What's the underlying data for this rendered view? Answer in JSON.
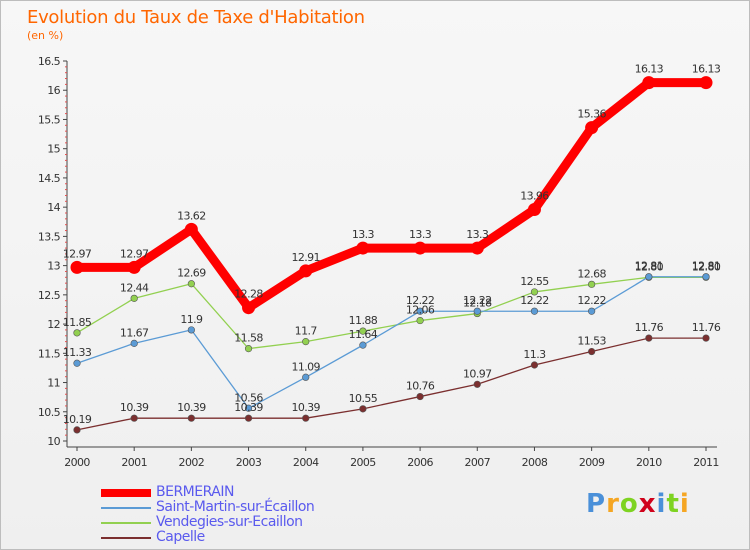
{
  "header": {
    "title": "Evolution du Taux de Taxe d'Habitation",
    "subtitle": "(en %)"
  },
  "brand": {
    "text": "Proxiti",
    "letters": [
      {
        "ch": "P",
        "color": "#4a90d9"
      },
      {
        "ch": "r",
        "color": "#f5a623"
      },
      {
        "ch": "o",
        "color": "#7ed321"
      },
      {
        "ch": "x",
        "color": "#d0021b"
      },
      {
        "ch": "i",
        "color": "#4a90d9"
      },
      {
        "ch": "t",
        "color": "#7ed321"
      },
      {
        "ch": "i",
        "color": "#f5a623"
      }
    ]
  },
  "chart_data": {
    "type": "line",
    "title": "Evolution du Taux de Taxe d'Habitation",
    "subtitle": "(en %)",
    "xlabel": "",
    "ylabel": "",
    "ylim": [
      10,
      16.5
    ],
    "yticks": [
      10,
      10.5,
      11,
      11.5,
      12,
      12.5,
      13,
      13.5,
      14,
      14.5,
      15,
      15.5,
      16,
      16.5
    ],
    "categories": [
      "2000",
      "2001",
      "2002",
      "2003",
      "2004",
      "2005",
      "2006",
      "2007",
      "2008",
      "2009",
      "2010",
      "2011"
    ],
    "grid": false,
    "legend_position": "bottom-left",
    "series": [
      {
        "name": "BERMERAIN",
        "color": "#ff0000",
        "values": [
          12.97,
          12.97,
          13.62,
          12.28,
          12.91,
          13.3,
          13.3,
          13.3,
          13.96,
          15.36,
          16.13,
          16.13
        ],
        "labels": [
          "12.97",
          "12.97",
          "13.62",
          "12.28",
          "12.91",
          "13.3",
          "13.3",
          "13.3",
          "13.96",
          "15.36",
          "16.13",
          "16.13"
        ]
      },
      {
        "name": "Saint-Martin-sur-Écaillon",
        "color": "#5b9bd5",
        "values": [
          11.33,
          11.67,
          11.9,
          10.56,
          11.09,
          11.64,
          12.22,
          12.22,
          12.22,
          12.22,
          12.81,
          12.81
        ],
        "labels": [
          "11.33",
          "11.67",
          "11.9",
          "10.56",
          "11.09",
          "11.64",
          "12.22",
          "12.22",
          "12.22",
          "12.22",
          "12.81",
          "12.81"
        ]
      },
      {
        "name": "Vendegies-sur-Ecaillon",
        "color": "#92d050",
        "values": [
          11.85,
          12.44,
          12.69,
          11.58,
          11.7,
          11.88,
          12.06,
          12.18,
          12.55,
          12.68,
          12.8,
          12.8
        ],
        "labels": [
          "11.85",
          "12.44",
          "12.69",
          "11.58",
          "11.7",
          "11.88",
          "12.06",
          "12.18",
          "12.55",
          "12.68",
          "12.80",
          "12.80"
        ]
      },
      {
        "name": "Capelle",
        "color": "#7b2f2f",
        "values": [
          10.19,
          10.39,
          10.39,
          10.39,
          10.39,
          10.55,
          10.76,
          10.97,
          11.3,
          11.53,
          11.76,
          11.76
        ],
        "labels": [
          "10.19",
          "10.39",
          "10.39",
          "10.39",
          "10.39",
          "10.55",
          "10.76",
          "10.97",
          "11.3",
          "11.53",
          "11.76",
          "11.76"
        ]
      }
    ]
  }
}
